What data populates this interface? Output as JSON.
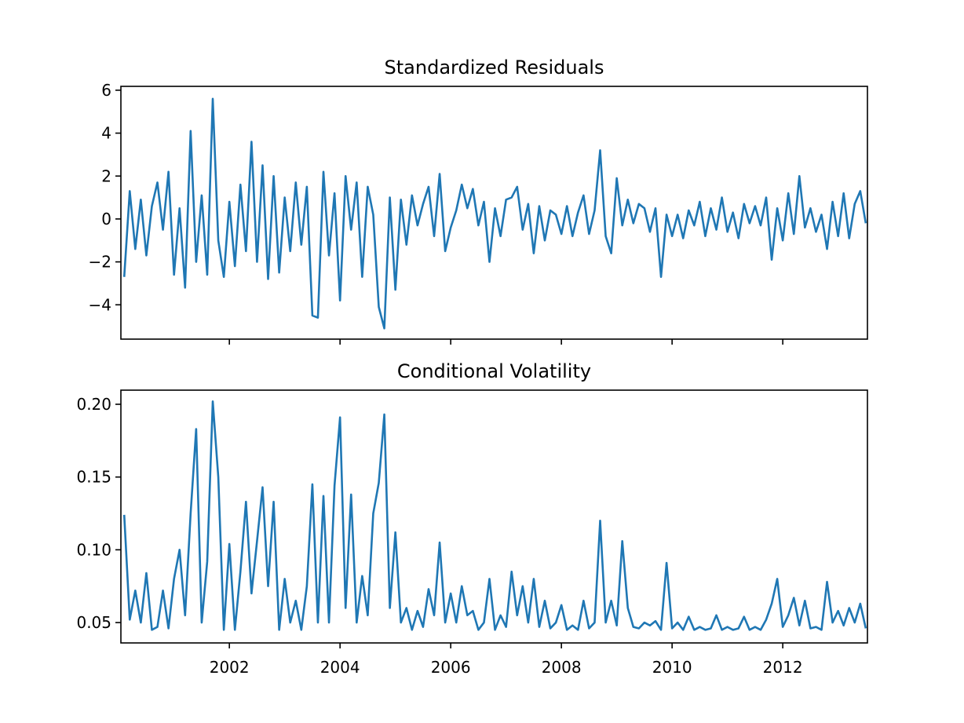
{
  "chart_data": [
    {
      "type": "line",
      "title": "Standardized Residuals",
      "x": [
        2000.1,
        2000.2,
        2000.3,
        2000.4,
        2000.5,
        2000.6,
        2000.7,
        2000.8,
        2000.9,
        2001.0,
        2001.1,
        2001.2,
        2001.3,
        2001.4,
        2001.5,
        2001.6,
        2001.7,
        2001.8,
        2001.9,
        2002.0,
        2002.1,
        2002.2,
        2002.3,
        2002.4,
        2002.5,
        2002.6,
        2002.7,
        2002.8,
        2002.9,
        2003.0,
        2003.1,
        2003.2,
        2003.3,
        2003.4,
        2003.5,
        2003.6,
        2003.7,
        2003.8,
        2003.9,
        2004.0,
        2004.1,
        2004.2,
        2004.3,
        2004.4,
        2004.5,
        2004.6,
        2004.7,
        2004.8,
        2004.9,
        2005.0,
        2005.1,
        2005.2,
        2005.3,
        2005.4,
        2005.5,
        2005.6,
        2005.7,
        2005.8,
        2005.9,
        2006.0,
        2006.1,
        2006.2,
        2006.3,
        2006.4,
        2006.5,
        2006.6,
        2006.7,
        2006.8,
        2006.9,
        2007.0,
        2007.1,
        2007.2,
        2007.3,
        2007.4,
        2007.5,
        2007.6,
        2007.7,
        2007.8,
        2007.9,
        2008.0,
        2008.1,
        2008.2,
        2008.3,
        2008.4,
        2008.5,
        2008.6,
        2008.7,
        2008.8,
        2008.9,
        2009.0,
        2009.1,
        2009.2,
        2009.3,
        2009.4,
        2009.5,
        2009.6,
        2009.7,
        2009.8,
        2009.9,
        2010.0,
        2010.1,
        2010.2,
        2010.3,
        2010.4,
        2010.5,
        2010.6,
        2010.7,
        2010.8,
        2010.9,
        2011.0,
        2011.1,
        2011.2,
        2011.3,
        2011.4,
        2011.5,
        2011.6,
        2011.7,
        2011.8,
        2011.9,
        2012.0,
        2012.1,
        2012.2,
        2012.3,
        2012.4,
        2012.5,
        2012.6,
        2012.7,
        2012.8,
        2012.9,
        2013.0,
        2013.1,
        2013.2,
        2013.3,
        2013.4,
        2013.5
      ],
      "series": [
        {
          "color": "#1f77b4",
          "values": [
            -2.7,
            1.3,
            -1.4,
            0.9,
            -1.7,
            0.6,
            1.7,
            -0.5,
            2.2,
            -2.6,
            0.5,
            -3.2,
            4.1,
            -2.0,
            1.1,
            -2.6,
            5.6,
            -1.0,
            -2.7,
            0.8,
            -2.2,
            1.6,
            -1.5,
            3.6,
            -2.0,
            2.5,
            -2.8,
            2.0,
            -2.5,
            1.0,
            -1.5,
            1.7,
            -1.2,
            1.5,
            -4.5,
            -4.6,
            2.2,
            -1.7,
            1.2,
            -3.8,
            2.0,
            -0.5,
            1.7,
            -2.7,
            1.5,
            0.2,
            -4.1,
            -5.1,
            1.0,
            -3.3,
            0.9,
            -1.2,
            1.1,
            -0.3,
            0.7,
            1.5,
            -0.8,
            2.1,
            -1.5,
            -0.4,
            0.4,
            1.6,
            0.5,
            1.4,
            -0.3,
            0.8,
            -2.0,
            0.5,
            -0.8,
            0.9,
            1.0,
            1.5,
            -0.5,
            0.7,
            -1.6,
            0.6,
            -1.0,
            0.4,
            0.2,
            -0.7,
            0.6,
            -0.8,
            0.3,
            1.1,
            -0.7,
            0.4,
            3.2,
            -0.8,
            -1.6,
            1.9,
            -0.3,
            0.9,
            -0.2,
            0.7,
            0.5,
            -0.6,
            0.5,
            -2.7,
            0.2,
            -0.8,
            0.2,
            -0.9,
            0.4,
            -0.3,
            0.8,
            -0.8,
            0.5,
            -0.5,
            1.0,
            -0.6,
            0.3,
            -0.9,
            0.7,
            -0.2,
            0.6,
            -0.3,
            1.0,
            -1.9,
            0.5,
            -1.0,
            1.2,
            -0.7,
            2.0,
            -0.4,
            0.5,
            -0.6,
            0.2,
            -1.4,
            0.8,
            -0.8,
            1.2,
            -0.9,
            0.7,
            1.3,
            -0.2
          ]
        }
      ],
      "xlim": [
        2000.04,
        2013.53
      ],
      "xticks": [
        2002,
        2004,
        2006,
        2008,
        2010,
        2012
      ],
      "ylim": [
        -5.6,
        6.18
      ],
      "yticks": [
        {
          "value": -4,
          "label": "−4"
        },
        {
          "value": -2,
          "label": "−2"
        },
        0,
        2,
        4,
        6
      ]
    },
    {
      "type": "line",
      "title": "Conditional Volatility",
      "x": [
        2000.1,
        2000.2,
        2000.3,
        2000.4,
        2000.5,
        2000.6,
        2000.7,
        2000.8,
        2000.9,
        2001.0,
        2001.1,
        2001.2,
        2001.3,
        2001.4,
        2001.5,
        2001.6,
        2001.7,
        2001.8,
        2001.9,
        2002.0,
        2002.1,
        2002.2,
        2002.3,
        2002.4,
        2002.5,
        2002.6,
        2002.7,
        2002.8,
        2002.9,
        2003.0,
        2003.1,
        2003.2,
        2003.3,
        2003.4,
        2003.5,
        2003.6,
        2003.7,
        2003.8,
        2003.9,
        2004.0,
        2004.1,
        2004.2,
        2004.3,
        2004.4,
        2004.5,
        2004.6,
        2004.7,
        2004.8,
        2004.9,
        2005.0,
        2005.1,
        2005.2,
        2005.3,
        2005.4,
        2005.5,
        2005.6,
        2005.7,
        2005.8,
        2005.9,
        2006.0,
        2006.1,
        2006.2,
        2006.3,
        2006.4,
        2006.5,
        2006.6,
        2006.7,
        2006.8,
        2006.9,
        2007.0,
        2007.1,
        2007.2,
        2007.3,
        2007.4,
        2007.5,
        2007.6,
        2007.7,
        2007.8,
        2007.9,
        2008.0,
        2008.1,
        2008.2,
        2008.3,
        2008.4,
        2008.5,
        2008.6,
        2008.7,
        2008.8,
        2008.9,
        2009.0,
        2009.1,
        2009.2,
        2009.3,
        2009.4,
        2009.5,
        2009.6,
        2009.7,
        2009.8,
        2009.9,
        2010.0,
        2010.1,
        2010.2,
        2010.3,
        2010.4,
        2010.5,
        2010.6,
        2010.7,
        2010.8,
        2010.9,
        2011.0,
        2011.1,
        2011.2,
        2011.3,
        2011.4,
        2011.5,
        2011.6,
        2011.7,
        2011.8,
        2011.9,
        2012.0,
        2012.1,
        2012.2,
        2012.3,
        2012.4,
        2012.5,
        2012.6,
        2012.7,
        2012.8,
        2012.9,
        2013.0,
        2013.1,
        2013.2,
        2013.3,
        2013.4,
        2013.5
      ],
      "series": [
        {
          "color": "#1f77b4",
          "values": [
            0.124,
            0.052,
            0.072,
            0.05,
            0.084,
            0.045,
            0.047,
            0.072,
            0.046,
            0.08,
            0.1,
            0.055,
            0.125,
            0.183,
            0.05,
            0.092,
            0.202,
            0.15,
            0.045,
            0.104,
            0.045,
            0.085,
            0.133,
            0.07,
            0.106,
            0.143,
            0.075,
            0.133,
            0.045,
            0.08,
            0.05,
            0.065,
            0.045,
            0.075,
            0.145,
            0.05,
            0.137,
            0.05,
            0.144,
            0.191,
            0.06,
            0.138,
            0.05,
            0.082,
            0.055,
            0.125,
            0.146,
            0.193,
            0.06,
            0.112,
            0.05,
            0.06,
            0.045,
            0.058,
            0.047,
            0.073,
            0.055,
            0.105,
            0.05,
            0.07,
            0.05,
            0.075,
            0.055,
            0.058,
            0.045,
            0.05,
            0.08,
            0.045,
            0.055,
            0.047,
            0.085,
            0.055,
            0.075,
            0.05,
            0.08,
            0.047,
            0.065,
            0.046,
            0.05,
            0.062,
            0.045,
            0.048,
            0.045,
            0.065,
            0.046,
            0.05,
            0.12,
            0.05,
            0.065,
            0.048,
            0.106,
            0.06,
            0.047,
            0.046,
            0.05,
            0.048,
            0.051,
            0.045,
            0.091,
            0.046,
            0.05,
            0.045,
            0.054,
            0.045,
            0.047,
            0.045,
            0.046,
            0.055,
            0.045,
            0.047,
            0.045,
            0.046,
            0.054,
            0.045,
            0.047,
            0.045,
            0.052,
            0.063,
            0.08,
            0.047,
            0.055,
            0.067,
            0.048,
            0.065,
            0.046,
            0.047,
            0.045,
            0.078,
            0.05,
            0.058,
            0.048,
            0.06,
            0.05,
            0.063,
            0.046
          ]
        }
      ],
      "xlim": [
        2000.04,
        2013.53
      ],
      "xticks": [
        2002,
        2004,
        2006,
        2008,
        2010,
        2012
      ],
      "ylim": [
        0.036,
        0.2097
      ],
      "yticks": [
        0.05,
        {
          "value": 0.1,
          "label": "0.10"
        },
        0.15,
        {
          "value": 0.2,
          "label": "0.20"
        }
      ]
    }
  ]
}
